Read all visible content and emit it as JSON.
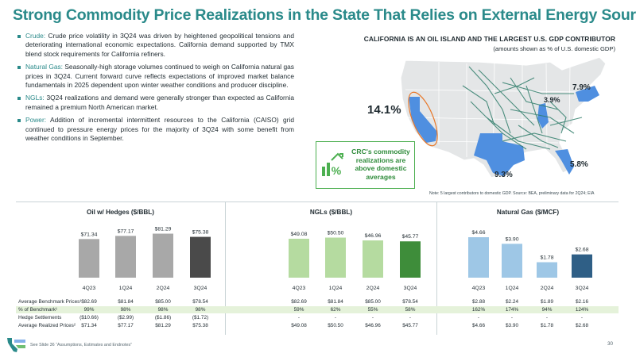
{
  "title": "Strong Commodity Price Realizations in the State That Relies on External Energy Sources",
  "bullets": [
    {
      "lead": "Crude:",
      "text": " Crude price volatility in 3Q24 was driven by heightened geopolitical tensions and deteriorating international economic expectations. California demand supported by TMX blend stock requirements for California refiners."
    },
    {
      "lead": "Natural Gas:",
      "text": " Seasonally-high storage volumes continued to weigh on California natural gas prices in 3Q24. Current forward curve reflects expectations of improved market balance fundamentals in 2025 dependent upon winter weather conditions and producer discipline."
    },
    {
      "lead": "NGLs:",
      "text": " 3Q24 realizations and demand were generally stronger than expected as California remained a premium North American market."
    },
    {
      "lead": "Power:",
      "text": " Addition of incremental intermittent resources to the California (CAISO) grid continued to pressure energy prices for the majority of 3Q24 with some benefit from weather conditions in September."
    }
  ],
  "map": {
    "title": "CALIFORNIA IS AN OIL ISLAND AND THE LARGEST U.S. GDP CONTRIBUTOR",
    "subtitle": "(amounts shown as % of U.S. domestic GDP)",
    "labels": {
      "california": "14.1%",
      "northeast": "7.9%",
      "midwest": "3.9%",
      "texas": "9.3%",
      "florida": "5.8%"
    },
    "note": "Note: 5 largest contributors to domestic GDP.  Source: BEA, preliminary data for 2Q24; EIA",
    "icon": "dollar-up-arrow-icon"
  },
  "callout": {
    "text": "CRC's commodity realizations are above domestic averages"
  },
  "colors": {
    "accent": "#2a8a8a",
    "oil_bars": [
      "#a8a8a8",
      "#a8a8a8",
      "#a8a8a8",
      "#4a4a4a"
    ],
    "ngl_bars": [
      "#b5dba0",
      "#b5dba0",
      "#b5dba0",
      "#3e8d3a"
    ],
    "gas_bars": [
      "#9ec7e6",
      "#9ec7e6",
      "#9ec7e6",
      "#2f5f86"
    ],
    "shade": "#e5f2da"
  },
  "chart_data": [
    {
      "type": "bar",
      "title": "Oil w/ Hedges ($/BBL)",
      "categories": [
        "4Q23",
        "1Q24",
        "2Q24",
        "3Q24"
      ],
      "values": [
        71.34,
        77.17,
        81.29,
        75.38
      ],
      "value_labels": [
        "$71.34",
        "$77.17",
        "$81.29",
        "$75.38"
      ],
      "ylim": [
        0,
        85
      ]
    },
    {
      "type": "bar",
      "title": "NGLs ($/BBL)",
      "categories": [
        "4Q23",
        "1Q24",
        "2Q24",
        "3Q24"
      ],
      "values": [
        49.08,
        50.5,
        46.96,
        45.77
      ],
      "value_labels": [
        "$49.08",
        "$50.50",
        "$46.96",
        "$45.77"
      ],
      "ylim": [
        0,
        58
      ]
    },
    {
      "type": "bar",
      "title": "Natural Gas ($/MCF)",
      "categories": [
        "4Q23",
        "1Q24",
        "2Q24",
        "3Q24"
      ],
      "values": [
        4.66,
        3.9,
        1.78,
        2.68
      ],
      "value_labels": [
        "$4.66",
        "$3.90",
        "$1.78",
        "$2.68"
      ],
      "ylim": [
        0,
        5.3
      ]
    }
  ],
  "table": {
    "labels": [
      "Average Benchmark Prices¹",
      "% of Benchmark¹",
      "Hedge Settlements",
      "Average Realized Prices²"
    ],
    "oil": [
      [
        "$82.69",
        "$81.84",
        "$85.00",
        "$78.54"
      ],
      [
        "99%",
        "98%",
        "98%",
        "98%"
      ],
      [
        "($10.66)",
        "($2.99)",
        "($1.86)",
        "($1.72)"
      ],
      [
        "$71.34",
        "$77.17",
        "$81.29",
        "$75.38"
      ]
    ],
    "ngl": [
      [
        "$82.69",
        "$81.84",
        "$85.00",
        "$78.54"
      ],
      [
        "59%",
        "62%",
        "55%",
        "58%"
      ],
      [
        "-",
        "-",
        "-",
        "-"
      ],
      [
        "$49.08",
        "$50.50",
        "$46.96",
        "$45.77"
      ]
    ],
    "gas": [
      [
        "$2.88",
        "$2.24",
        "$1.89",
        "$2.16"
      ],
      [
        "162%",
        "174%",
        "94%",
        "124%"
      ],
      [
        "-",
        "-",
        "-",
        "-"
      ],
      [
        "$4.66",
        "$3.90",
        "$1.78",
        "$2.68"
      ]
    ]
  },
  "footer": "See Slide 36 “Assumptions, Estimates and Endnotes”",
  "page_number": "30"
}
